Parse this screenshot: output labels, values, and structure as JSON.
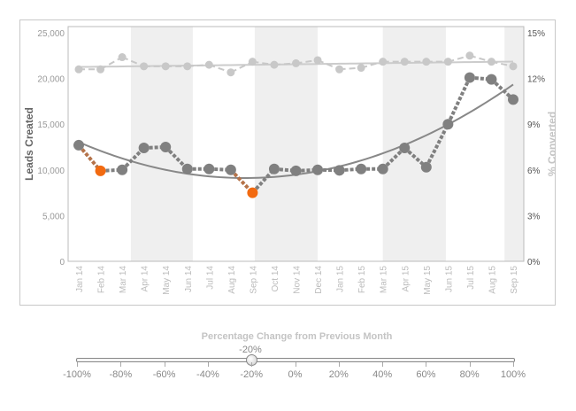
{
  "chart_data": {
    "type": "line",
    "categories": [
      "Jan 14",
      "Feb 14",
      "Mar 14",
      "Apr 14",
      "May 14",
      "Jun 14",
      "Jul 14",
      "Aug 14",
      "Sep 14",
      "Oct 14",
      "Nov 14",
      "Dec 14",
      "Jan 15",
      "Feb 15",
      "Mar 15",
      "Apr 15",
      "May 15",
      "Jun 15",
      "Jul 15",
      "Aug 15",
      "Sep 15"
    ],
    "ylabel": "Leads Created",
    "y2label": "% Converted",
    "ylim": [
      0,
      25000
    ],
    "y2lim": [
      0,
      15
    ],
    "yticks": [
      "0",
      "5,000",
      "10,000",
      "15,000",
      "20,000",
      "25,000"
    ],
    "y2ticks": [
      "0%",
      "3%",
      "6%",
      "9%",
      "12%",
      "15%"
    ],
    "series": [
      {
        "axis": "left",
        "style": "dotted-thick",
        "trendline": "quadratic",
        "color": "#808080",
        "highlight_color": "#f26a10",
        "values": [
          12700,
          9900,
          10000,
          12400,
          12500,
          10100,
          10100,
          10000,
          7500,
          10100,
          9900,
          10000,
          9950,
          10100,
          10100,
          12400,
          10300,
          15000,
          20100,
          19900,
          17700
        ]
      },
      {
        "axis": "right",
        "style": "dashed",
        "trendline": "linear",
        "color": "#c8c8c8",
        "values": [
          12.6,
          12.6,
          13.4,
          12.8,
          12.8,
          12.8,
          12.9,
          12.4,
          13.1,
          12.9,
          13.0,
          13.2,
          12.6,
          12.7,
          13.1,
          13.1,
          13.1,
          13.1,
          13.5,
          13.1,
          12.8
        ]
      }
    ],
    "grid": false
  },
  "slider": {
    "title": "Percentage Change from Previous Month",
    "value": -20,
    "value_label": "-20%",
    "min": -100,
    "max": 100,
    "ticks": [
      "-100%",
      "-80%",
      "-60%",
      "-40%",
      "-20%",
      "0%",
      "20%",
      "40%",
      "60%",
      "80%",
      "100%"
    ]
  }
}
